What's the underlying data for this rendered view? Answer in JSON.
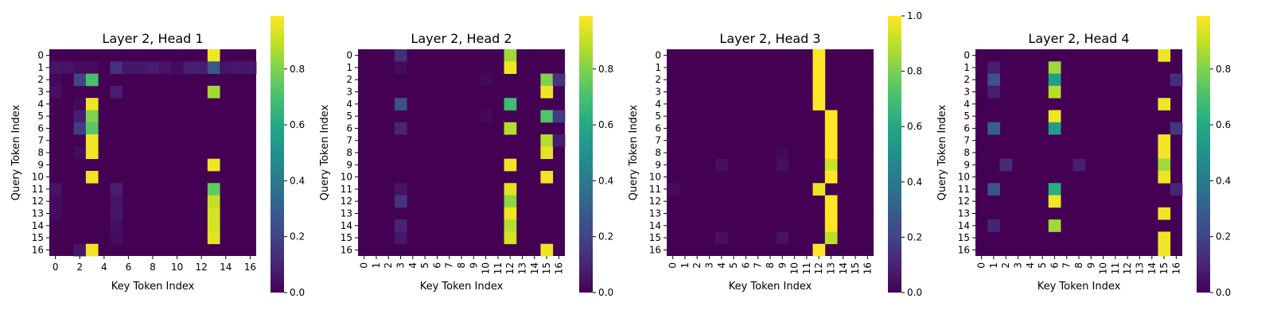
{
  "colorbar_ticks": [
    "0.0",
    "0.2",
    "0.4",
    "0.6",
    "0.8",
    "1.0"
  ],
  "chart_data": [
    {
      "type": "heatmap",
      "title": "Layer 2, Head 1",
      "xlabel": "Key Token Index",
      "ylabel": "Query Token Index",
      "x_ticks": [
        "0",
        "2",
        "4",
        "6",
        "8",
        "10",
        "12",
        "14",
        "16"
      ],
      "y_ticks": [
        "0",
        "1",
        "2",
        "3",
        "4",
        "5",
        "6",
        "7",
        "8",
        "9",
        "10",
        "11",
        "12",
        "13",
        "14",
        "15",
        "16"
      ],
      "colorbar": {
        "range": [
          0,
          0.99
        ],
        "ticks": [
          "0.0",
          "0.2",
          "0.4",
          "0.6",
          "0.8"
        ]
      },
      "rows": 17,
      "cols": 17,
      "colormap": "viridis",
      "cells": [
        [
          0,
          13,
          0.97
        ],
        [
          1,
          0,
          0.06
        ],
        [
          1,
          1,
          0.05
        ],
        [
          1,
          2,
          0.03
        ],
        [
          1,
          3,
          0.03
        ],
        [
          1,
          5,
          0.14
        ],
        [
          1,
          6,
          0.06
        ],
        [
          1,
          7,
          0.06
        ],
        [
          1,
          8,
          0.08
        ],
        [
          1,
          9,
          0.05
        ],
        [
          1,
          10,
          0.03
        ],
        [
          1,
          11,
          0.08
        ],
        [
          1,
          12,
          0.08
        ],
        [
          1,
          13,
          0.27
        ],
        [
          1,
          14,
          0.05
        ],
        [
          1,
          15,
          0.06
        ],
        [
          1,
          16,
          0.06
        ],
        [
          2,
          0,
          0.02
        ],
        [
          2,
          2,
          0.2
        ],
        [
          2,
          3,
          0.7
        ],
        [
          3,
          0,
          0.04
        ],
        [
          3,
          5,
          0.08
        ],
        [
          3,
          13,
          0.85
        ],
        [
          4,
          2,
          0.02
        ],
        [
          4,
          3,
          0.97
        ],
        [
          5,
          2,
          0.08
        ],
        [
          5,
          3,
          0.8
        ],
        [
          6,
          2,
          0.17
        ],
        [
          6,
          3,
          0.73
        ],
        [
          7,
          3,
          0.97
        ],
        [
          8,
          2,
          0.03
        ],
        [
          8,
          3,
          0.97
        ],
        [
          9,
          13,
          0.97
        ],
        [
          10,
          3,
          0.97
        ],
        [
          11,
          0,
          0.05
        ],
        [
          11,
          5,
          0.08
        ],
        [
          11,
          13,
          0.75
        ],
        [
          12,
          0,
          0.03
        ],
        [
          12,
          5,
          0.05
        ],
        [
          12,
          13,
          0.9
        ],
        [
          13,
          0,
          0.03
        ],
        [
          13,
          5,
          0.06
        ],
        [
          13,
          13,
          0.93
        ],
        [
          14,
          5,
          0.04
        ],
        [
          14,
          13,
          0.93
        ],
        [
          15,
          5,
          0.03
        ],
        [
          15,
          13,
          0.95
        ],
        [
          16,
          2,
          0.06
        ],
        [
          16,
          3,
          0.97
        ]
      ]
    },
    {
      "type": "heatmap",
      "title": "Layer 2, Head 2",
      "xlabel": "Key Token Index",
      "ylabel": "Query Token Index",
      "x_ticks": [
        "0",
        "1",
        "2",
        "3",
        "4",
        "5",
        "6",
        "7",
        "8",
        "9",
        "10",
        "11",
        "12",
        "13",
        "14",
        "15",
        "16"
      ],
      "y_ticks": [
        "0",
        "1",
        "2",
        "3",
        "4",
        "5",
        "6",
        "7",
        "8",
        "9",
        "10",
        "11",
        "12",
        "13",
        "14",
        "15",
        "16"
      ],
      "colorbar": {
        "range": [
          0,
          0.99
        ],
        "ticks": [
          "0.0",
          "0.2",
          "0.4",
          "0.6",
          "0.8"
        ]
      },
      "rows": 17,
      "cols": 17,
      "colormap": "viridis",
      "cells": [
        [
          0,
          3,
          0.13
        ],
        [
          0,
          12,
          0.85
        ],
        [
          1,
          3,
          0.03
        ],
        [
          1,
          12,
          0.97
        ],
        [
          2,
          10,
          0.02
        ],
        [
          2,
          15,
          0.8
        ],
        [
          2,
          16,
          0.15
        ],
        [
          3,
          15,
          0.97
        ],
        [
          4,
          3,
          0.25
        ],
        [
          4,
          12,
          0.68
        ],
        [
          5,
          10,
          0.02
        ],
        [
          5,
          15,
          0.72
        ],
        [
          5,
          16,
          0.17
        ],
        [
          6,
          3,
          0.1
        ],
        [
          6,
          12,
          0.88
        ],
        [
          7,
          15,
          0.88
        ],
        [
          7,
          16,
          0.08
        ],
        [
          8,
          15,
          0.95
        ],
        [
          9,
          12,
          0.97
        ],
        [
          10,
          15,
          0.97
        ],
        [
          11,
          3,
          0.05
        ],
        [
          11,
          12,
          0.95
        ],
        [
          12,
          3,
          0.15
        ],
        [
          12,
          12,
          0.82
        ],
        [
          13,
          12,
          0.97
        ],
        [
          14,
          3,
          0.1
        ],
        [
          14,
          12,
          0.88
        ],
        [
          15,
          3,
          0.06
        ],
        [
          15,
          12,
          0.93
        ],
        [
          16,
          15,
          0.97
        ]
      ]
    },
    {
      "type": "heatmap",
      "title": "Layer 2, Head 3",
      "xlabel": "Key Token Index",
      "ylabel": "Query Token Index",
      "x_ticks": [
        "0",
        "1",
        "2",
        "3",
        "4",
        "5",
        "6",
        "7",
        "8",
        "9",
        "10",
        "11",
        "12",
        "13",
        "14",
        "15",
        "16"
      ],
      "y_ticks": [
        "0",
        "1",
        "2",
        "3",
        "4",
        "5",
        "6",
        "7",
        "8",
        "9",
        "10",
        "11",
        "12",
        "13",
        "14",
        "15",
        "16"
      ],
      "colorbar": {
        "range": [
          0,
          1.0
        ],
        "ticks": [
          "0.0",
          "0.2",
          "0.4",
          "0.6",
          "0.8",
          "1.0"
        ]
      },
      "rows": 17,
      "cols": 17,
      "colormap": "viridis",
      "cells": [
        [
          0,
          12,
          1.0
        ],
        [
          1,
          12,
          1.0
        ],
        [
          2,
          12,
          1.0
        ],
        [
          3,
          12,
          1.0
        ],
        [
          4,
          12,
          1.0
        ],
        [
          5,
          13,
          1.0
        ],
        [
          6,
          13,
          1.0
        ],
        [
          7,
          13,
          1.0
        ],
        [
          8,
          9,
          0.02
        ],
        [
          8,
          13,
          1.0
        ],
        [
          9,
          4,
          0.04
        ],
        [
          9,
          9,
          0.04
        ],
        [
          9,
          13,
          0.92
        ],
        [
          10,
          13,
          1.0
        ],
        [
          11,
          0,
          0.03
        ],
        [
          11,
          12,
          0.97
        ],
        [
          12,
          13,
          1.0
        ],
        [
          13,
          13,
          1.0
        ],
        [
          14,
          13,
          1.0
        ],
        [
          15,
          4,
          0.04
        ],
        [
          15,
          9,
          0.05
        ],
        [
          15,
          13,
          0.9
        ],
        [
          16,
          12,
          1.0
        ]
      ]
    },
    {
      "type": "heatmap",
      "title": "Layer 2, Head 4",
      "xlabel": "Key Token Index",
      "ylabel": "Query Token Index",
      "x_ticks": [
        "0",
        "1",
        "2",
        "3",
        "4",
        "5",
        "6",
        "7",
        "8",
        "9",
        "10",
        "11",
        "12",
        "13",
        "14",
        "15",
        "16"
      ],
      "y_ticks": [
        "0",
        "1",
        "2",
        "3",
        "4",
        "5",
        "6",
        "7",
        "8",
        "9",
        "10",
        "11",
        "12",
        "13",
        "14",
        "15",
        "16"
      ],
      "colorbar": {
        "range": [
          0,
          0.99
        ],
        "ticks": [
          "0.0",
          "0.2",
          "0.4",
          "0.6",
          "0.8"
        ]
      },
      "rows": 17,
      "cols": 17,
      "colormap": "viridis",
      "cells": [
        [
          0,
          15,
          0.97
        ],
        [
          1,
          1,
          0.08
        ],
        [
          1,
          6,
          0.85
        ],
        [
          2,
          1,
          0.25
        ],
        [
          2,
          6,
          0.55
        ],
        [
          2,
          16,
          0.13
        ],
        [
          3,
          1,
          0.08
        ],
        [
          3,
          6,
          0.88
        ],
        [
          4,
          15,
          0.97
        ],
        [
          5,
          6,
          0.97
        ],
        [
          6,
          1,
          0.3
        ],
        [
          6,
          6,
          0.55
        ],
        [
          6,
          16,
          0.15
        ],
        [
          7,
          15,
          0.97
        ],
        [
          8,
          15,
          0.97
        ],
        [
          9,
          2,
          0.12
        ],
        [
          9,
          8,
          0.08
        ],
        [
          9,
          15,
          0.85
        ],
        [
          10,
          15,
          0.97
        ],
        [
          11,
          1,
          0.25
        ],
        [
          11,
          6,
          0.62
        ],
        [
          11,
          16,
          0.1
        ],
        [
          12,
          6,
          0.97
        ],
        [
          13,
          15,
          0.97
        ],
        [
          14,
          1,
          0.1
        ],
        [
          14,
          6,
          0.85
        ],
        [
          15,
          15,
          0.97
        ],
        [
          16,
          15,
          0.97
        ]
      ]
    }
  ]
}
